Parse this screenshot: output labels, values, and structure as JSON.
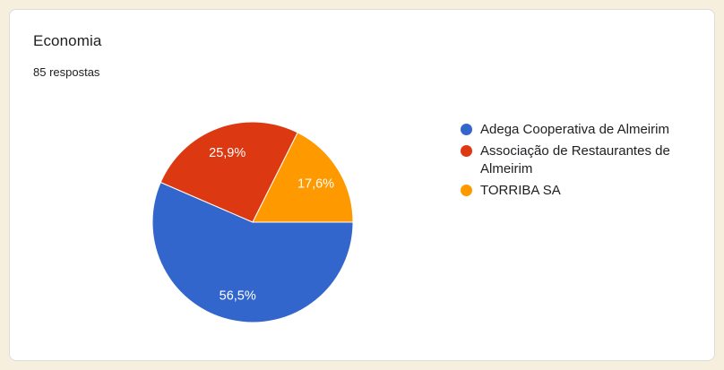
{
  "card": {
    "title": "Economia",
    "subtitle": "85 respostas"
  },
  "colors": {
    "page_background": "#F6EFDD",
    "card_background": "#FFFFFF",
    "card_border": "#DADCE0",
    "text": "#202124",
    "slice_label_text": "#FFFFFF"
  },
  "chart_data": {
    "type": "pie",
    "title": "Economia",
    "subtitle": "85 respostas",
    "categories": [
      "Adega Cooperativa de Almeirim",
      "Associação de Restaurantes de Almeirim",
      "TORRIBA SA"
    ],
    "values": [
      56.5,
      25.9,
      17.6
    ],
    "unit": "%",
    "slice_labels": [
      "56,5%",
      "25,9%",
      "17,6%"
    ],
    "colors": [
      "#3366CC",
      "#DC3912",
      "#FF9900"
    ],
    "start_angle_deg": 0,
    "direction": "clockwise",
    "legend_position": "right",
    "label_radius_ratio": 0.74
  }
}
